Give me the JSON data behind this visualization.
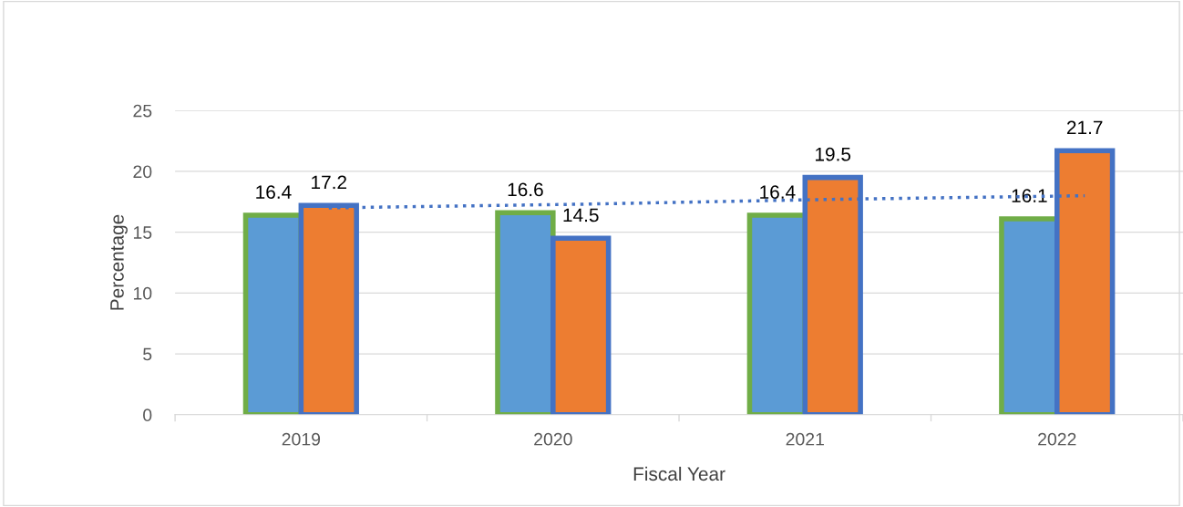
{
  "chart_data": {
    "type": "bar",
    "xlabel": "Fiscal Year",
    "ylabel": "Percentage",
    "categories": [
      "2019",
      "2020",
      "2021",
      "2022"
    ],
    "series": [
      {
        "color": "#5b9bd5",
        "values": [
          16.4,
          16.6,
          16.4,
          16.1
        ],
        "value_labels": [
          "16.4",
          "16.6",
          "16.4",
          "16.1"
        ]
      },
      {
        "color": "#ed7d31",
        "values": [
          17.2,
          14.5,
          19.5,
          21.7
        ],
        "value_labels": [
          "17.2",
          "14.5",
          "19.5",
          "21.7"
        ]
      },
      {
        "type": "line",
        "color": "#4472c4",
        "line_style": "dotted",
        "values": [
          17.0,
          17.3,
          17.7,
          18.0
        ]
      }
    ],
    "ylim": [
      0,
      25
    ],
    "yticks": [
      0,
      5,
      10,
      15,
      20,
      25
    ],
    "grid": "y",
    "legend": false
  }
}
